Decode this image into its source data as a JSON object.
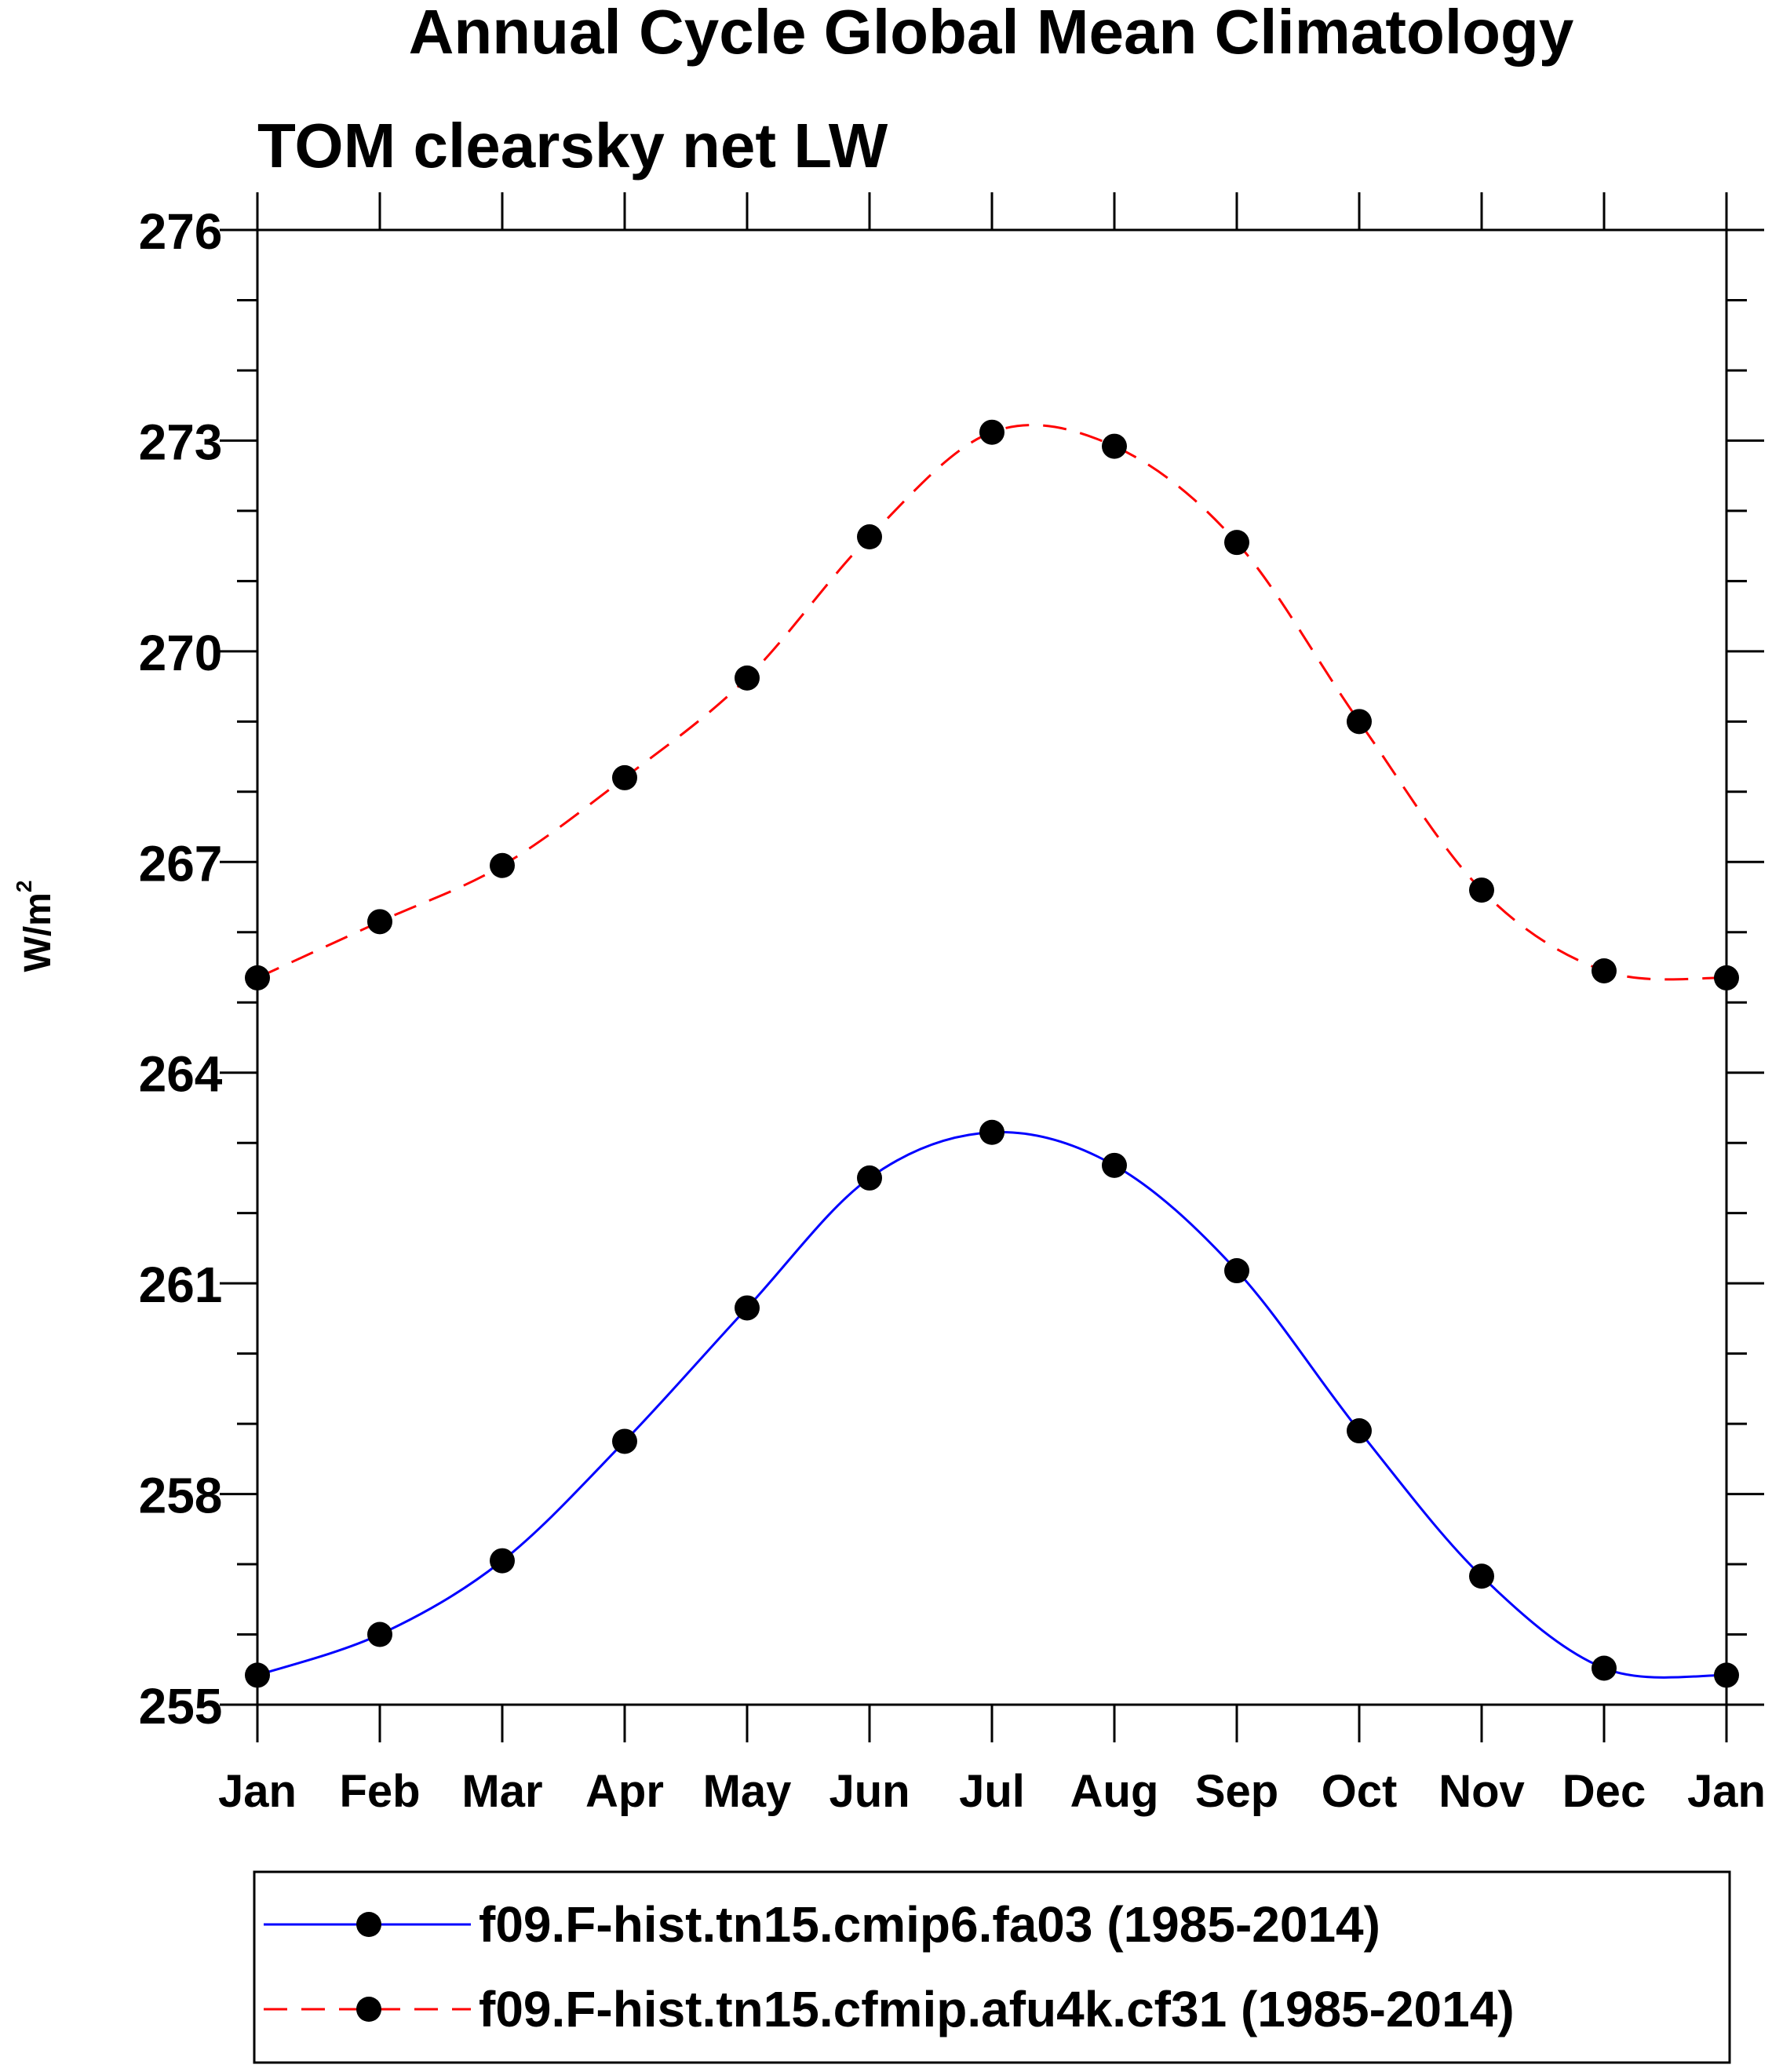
{
  "chart_data": {
    "type": "line",
    "title": "Annual Cycle Global Mean Climatology",
    "subtitle": "TOM clearsky net LW",
    "ylabel": "W/m",
    "ylabel_superscript": "2",
    "xlabel": "",
    "categories": [
      "Jan",
      "Feb",
      "Mar",
      "Apr",
      "May",
      "Jun",
      "Jul",
      "Aug",
      "Sep",
      "Oct",
      "Nov",
      "Dec",
      "Jan"
    ],
    "ylim": [
      255,
      276
    ],
    "yticks": [
      255,
      258,
      261,
      264,
      267,
      270,
      273,
      276
    ],
    "yticks_labels": [
      "255",
      "258",
      "261",
      "264",
      "267",
      "270",
      "273",
      "276"
    ],
    "series": [
      {
        "name": "f09.F-hist.tn15.cmip6.fa03 (1985-2014)",
        "color": "#0000ff",
        "dash": "solid",
        "values": [
          255.42,
          256.0,
          257.05,
          258.75,
          260.65,
          262.5,
          263.15,
          262.68,
          261.18,
          258.9,
          256.83,
          255.52,
          255.42
        ]
      },
      {
        "name": "f09.F-hist.tn15.cfmip.afu4k.cf31 (1985-2014)",
        "color": "#ff0000",
        "dash": "dashed",
        "values": [
          265.35,
          266.15,
          266.95,
          268.2,
          269.62,
          271.63,
          273.12,
          272.92,
          271.55,
          269.0,
          266.6,
          265.45,
          265.35
        ]
      }
    ],
    "legend_position": "bottom"
  }
}
